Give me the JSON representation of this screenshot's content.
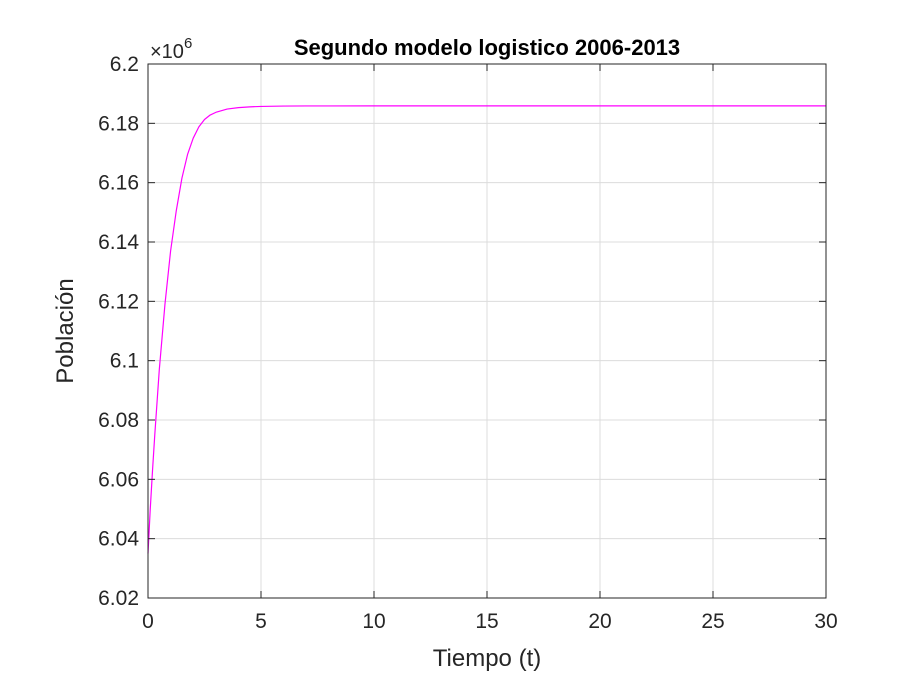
{
  "chart_data": {
    "type": "line",
    "title": "Segundo modelo logistico 2006-2013",
    "xlabel": "Tiempo (t)",
    "ylabel": "Población",
    "y_exponent_label": "×10",
    "y_exponent_power": "6",
    "xlim": [
      0,
      30
    ],
    "ylim": [
      6.02,
      6.2
    ],
    "y_scale": 1000000,
    "grid": true,
    "x_ticks": [
      0,
      5,
      10,
      15,
      20,
      25,
      30
    ],
    "x_tick_labels": [
      "0",
      "5",
      "10",
      "15",
      "20",
      "25",
      "30"
    ],
    "y_ticks": [
      6.02,
      6.04,
      6.06,
      6.08,
      6.1,
      6.12,
      6.14,
      6.16,
      6.18,
      6.2
    ],
    "y_tick_labels": [
      "6.02",
      "6.04",
      "6.06",
      "6.08",
      "6.1",
      "6.12",
      "6.14",
      "6.16",
      "6.18",
      "6.2"
    ],
    "series": [
      {
        "color": "#ff00ff",
        "x": [
          0,
          0.1,
          0.2,
          0.3,
          0.5,
          0.75,
          1,
          1.25,
          1.5,
          1.75,
          2,
          2.25,
          2.5,
          2.75,
          3,
          3.5,
          4,
          4.5,
          5,
          6,
          7,
          8,
          10,
          15,
          20,
          25,
          30
        ],
        "y": [
          6035000,
          6050000,
          6063000,
          6075000,
          6097000,
          6119000,
          6137000,
          6150500,
          6161500,
          6169500,
          6175000,
          6178800,
          6181300,
          6182800,
          6183700,
          6184800,
          6185300,
          6185550,
          6185700,
          6185820,
          6185860,
          6185870,
          6185880,
          6185880,
          6185880,
          6185880,
          6185880
        ]
      }
    ]
  }
}
